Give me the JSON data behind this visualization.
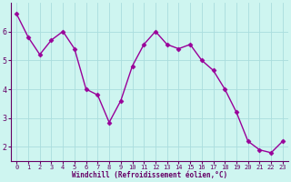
{
  "x": [
    0,
    1,
    2,
    3,
    4,
    5,
    6,
    7,
    8,
    9,
    10,
    11,
    12,
    13,
    14,
    15,
    16,
    17,
    18,
    19,
    20,
    21,
    22,
    23
  ],
  "y": [
    6.6,
    5.8,
    5.2,
    5.7,
    6.0,
    5.4,
    4.0,
    3.8,
    2.85,
    3.6,
    4.8,
    5.55,
    6.0,
    5.55,
    5.4,
    5.55,
    5.0,
    4.65,
    4.0,
    3.2,
    2.2,
    1.9,
    1.8,
    2.2
  ],
  "line_color": "#990099",
  "marker": "D",
  "marker_size": 2.5,
  "bg_color": "#cef5f0",
  "grid_color": "#aadddd",
  "xlabel": "Windchill (Refroidissement éolien,°C)",
  "xlabel_color": "#660066",
  "tick_color": "#660066",
  "axis_color": "#660066",
  "ylim": [
    1.5,
    7.0
  ],
  "xlim": [
    -0.5,
    23.5
  ],
  "yticks": [
    2,
    3,
    4,
    5,
    6
  ],
  "xticks": [
    0,
    1,
    2,
    3,
    4,
    5,
    6,
    7,
    8,
    9,
    10,
    11,
    12,
    13,
    14,
    15,
    16,
    17,
    18,
    19,
    20,
    21,
    22,
    23
  ]
}
